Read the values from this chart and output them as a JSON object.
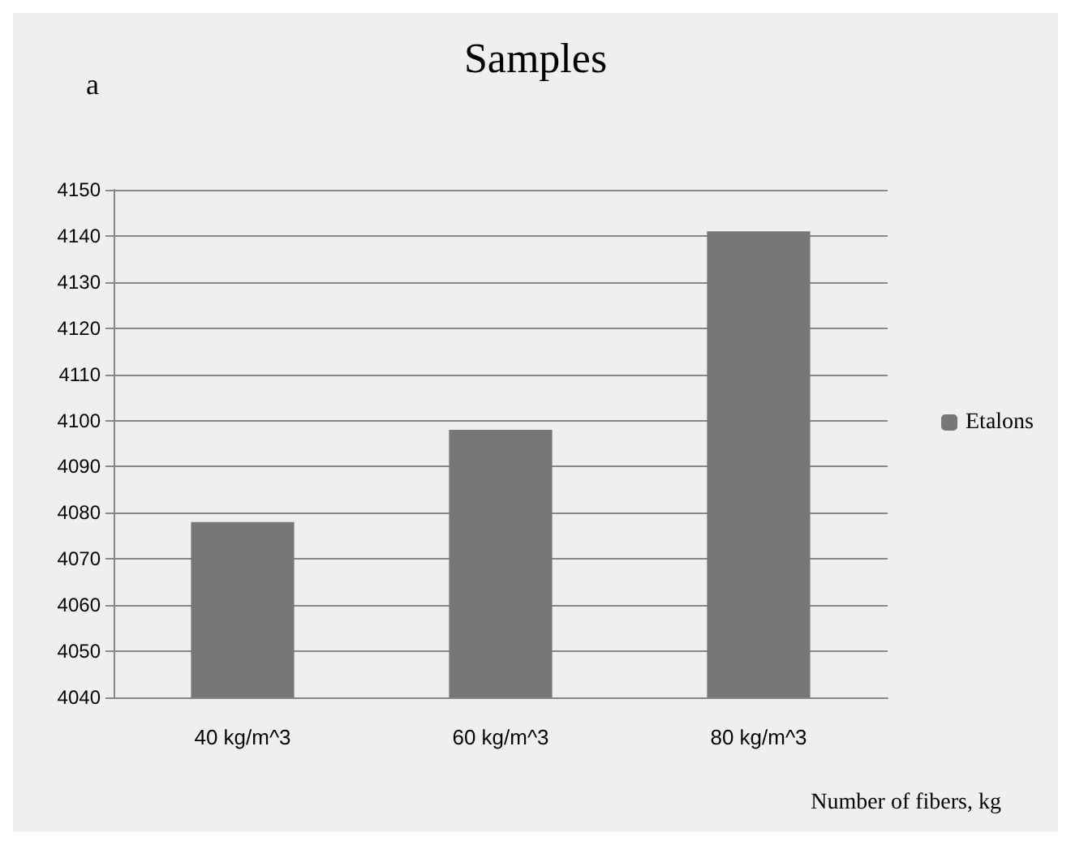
{
  "chart_data": {
    "type": "bar",
    "title": "Samples",
    "annotations": [
      "a"
    ],
    "xlabel": "Number of fibers, kg",
    "categories": [
      "40 kg/m^3",
      "60 kg/m^3",
      "80 kg/m^3"
    ],
    "series": [
      {
        "name": "Etalons",
        "color": "#777777",
        "values": [
          4078,
          4098,
          4141
        ]
      }
    ],
    "ylim": [
      4040,
      4150
    ],
    "yticks": [
      4040,
      4050,
      4060,
      4070,
      4080,
      4090,
      4100,
      4110,
      4120,
      4130,
      4140,
      4150
    ],
    "grid": "y",
    "legend": "right"
  }
}
